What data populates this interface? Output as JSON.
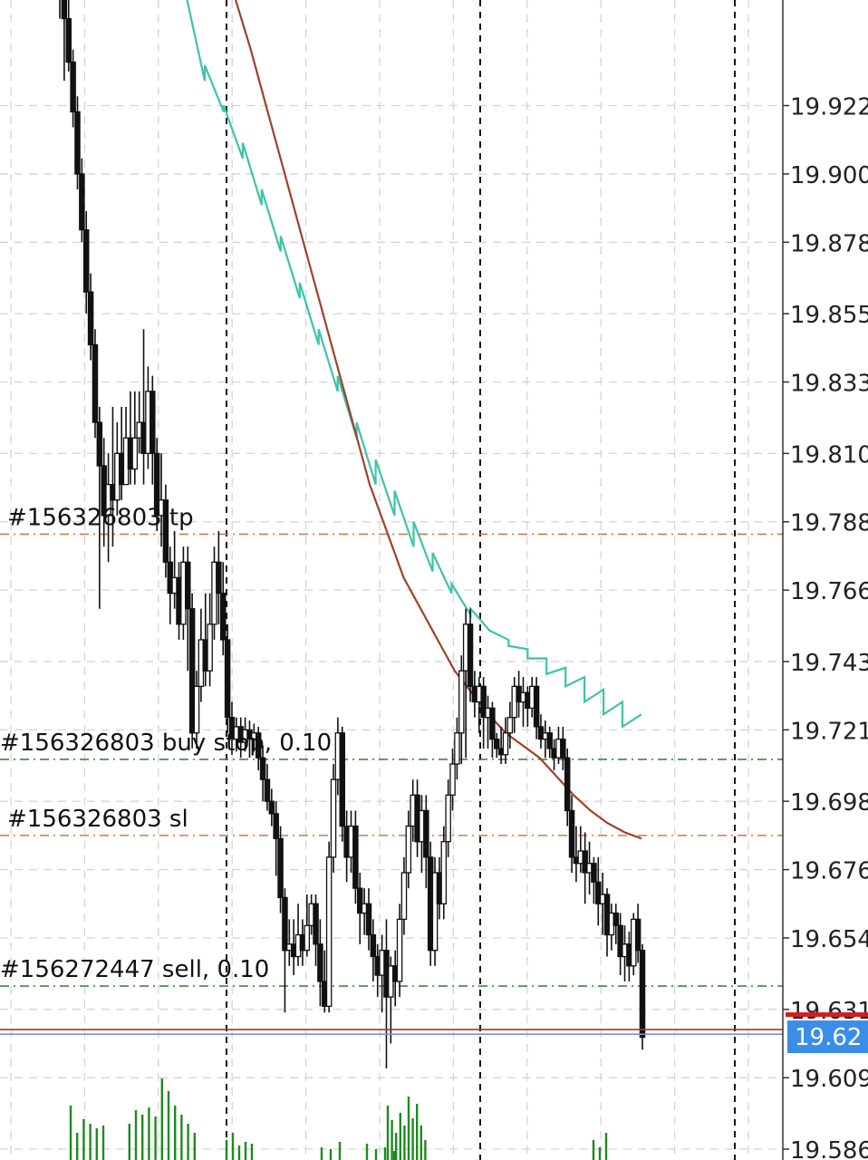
{
  "colors": {
    "background": "#ffffff",
    "grid": "#d4d4d4",
    "candle": "#111111",
    "volume": "#1f8a1f",
    "ma_fast": "#3cc4a8",
    "ma_slow": "#a0402a",
    "order_tp_sl": "#d07a40",
    "order_entry": "#3a8a3a",
    "bid_line": "#b03030",
    "ask_line": "#6f96c8",
    "price_tag": "#3b8ee8",
    "current_marker": "#d41c1c"
  },
  "chart_data": {
    "type": "candlestick",
    "y_axis": {
      "ticks": [
        "19.922",
        "19.900",
        "19.878",
        "19.855",
        "19.833",
        "19.810",
        "19.788",
        "19.766",
        "19.743",
        "19.721",
        "19.698",
        "19.676",
        "19.654",
        "19.631",
        "19.609",
        "19.586"
      ],
      "range": [
        19.5825,
        19.956
      ]
    },
    "order_lines": [
      {
        "label": "#156326803 tp",
        "price": 19.784,
        "kind": "tp"
      },
      {
        "label": "#156326803 buy stop, 0.10",
        "price": 19.7115,
        "kind": "entry"
      },
      {
        "label": "#156326803 sl",
        "price": 19.687,
        "kind": "sl"
      },
      {
        "label": "#156272447 sell, 0.10",
        "price": 19.6385,
        "kind": "entry"
      }
    ],
    "current_price": {
      "label": "19.62",
      "bid": 19.6245,
      "ask": 19.623
    },
    "period_separators": 4,
    "candles": [
      [
        19.99,
        19.97,
        19.98,
        19.95
      ],
      [
        19.97,
        19.95,
        19.97,
        19.93
      ],
      [
        19.95,
        19.936,
        19.957,
        19.933
      ],
      [
        19.936,
        19.92,
        19.94,
        19.915
      ],
      [
        19.92,
        19.9,
        19.925,
        19.895
      ],
      [
        19.9,
        19.882,
        19.905,
        19.878
      ],
      [
        19.882,
        19.862,
        19.888,
        19.855
      ],
      [
        19.862,
        19.845,
        19.868,
        19.84
      ],
      [
        19.845,
        19.82,
        19.85,
        19.815
      ],
      [
        19.82,
        19.806,
        19.825,
        19.76
      ],
      [
        19.806,
        19.79,
        19.815,
        19.78
      ],
      [
        19.79,
        19.8,
        19.81,
        19.775
      ],
      [
        19.8,
        19.795,
        19.825,
        19.78
      ],
      [
        19.795,
        19.81,
        19.82,
        19.79
      ],
      [
        19.81,
        19.8,
        19.825,
        19.795
      ],
      [
        19.8,
        19.815,
        19.825,
        19.8
      ],
      [
        19.815,
        19.805,
        19.83,
        19.8
      ],
      [
        19.805,
        19.815,
        19.83,
        19.8
      ],
      [
        19.815,
        19.82,
        19.83,
        19.81
      ],
      [
        19.82,
        19.81,
        19.85,
        19.8
      ],
      [
        19.81,
        19.83,
        19.838,
        19.805
      ],
      [
        19.83,
        19.81,
        19.835,
        19.8
      ],
      [
        19.81,
        19.79,
        19.815,
        19.785
      ],
      [
        19.79,
        19.795,
        19.81,
        19.78
      ],
      [
        19.795,
        19.775,
        19.8,
        19.77
      ],
      [
        19.775,
        19.765,
        19.78,
        19.755
      ],
      [
        19.765,
        19.77,
        19.785,
        19.76
      ],
      [
        19.77,
        19.755,
        19.775,
        19.75
      ],
      [
        19.755,
        19.775,
        19.78,
        19.75
      ],
      [
        19.775,
        19.76,
        19.78,
        19.74
      ],
      [
        19.76,
        19.72,
        19.765,
        19.715
      ],
      [
        19.72,
        19.735,
        19.74,
        19.715
      ],
      [
        19.735,
        19.75,
        19.76,
        19.73
      ],
      [
        19.75,
        19.74,
        19.765,
        19.735
      ],
      [
        19.74,
        19.755,
        19.765,
        19.735
      ],
      [
        19.755,
        19.775,
        19.78,
        19.75
      ],
      [
        19.775,
        19.765,
        19.785,
        19.755
      ],
      [
        19.765,
        19.75,
        19.775,
        19.745
      ],
      [
        19.75,
        19.725,
        19.755,
        19.72
      ],
      [
        19.725,
        19.718,
        19.73,
        19.713
      ],
      [
        19.718,
        19.722,
        19.725,
        19.714
      ],
      [
        19.722,
        19.717,
        19.725,
        19.712
      ],
      [
        19.717,
        19.721,
        19.725,
        19.714
      ],
      [
        19.721,
        19.718,
        19.724,
        19.712
      ],
      [
        19.718,
        19.72,
        19.723,
        19.714
      ],
      [
        19.72,
        19.712,
        19.722,
        19.708
      ],
      [
        19.712,
        19.705,
        19.716,
        19.698
      ],
      [
        19.705,
        19.698,
        19.71,
        19.695
      ],
      [
        19.698,
        19.694,
        19.702,
        19.69
      ],
      [
        19.694,
        19.686,
        19.698,
        19.674
      ],
      [
        19.686,
        19.667,
        19.69,
        19.662
      ],
      [
        19.667,
        19.65,
        19.67,
        19.63
      ],
      [
        19.65,
        19.652,
        19.66,
        19.645
      ],
      [
        19.652,
        19.648,
        19.66,
        19.642
      ],
      [
        19.648,
        19.655,
        19.665,
        19.645
      ],
      [
        19.655,
        19.65,
        19.66,
        19.645
      ],
      [
        19.65,
        19.658,
        19.668,
        19.648
      ],
      [
        19.658,
        19.665,
        19.668,
        19.655
      ],
      [
        19.665,
        19.652,
        19.668,
        19.645
      ],
      [
        19.652,
        19.64,
        19.66,
        19.632
      ],
      [
        19.64,
        19.632,
        19.65,
        19.63
      ],
      [
        19.632,
        19.68,
        19.685,
        19.63
      ],
      [
        19.68,
        19.705,
        19.71,
        19.675
      ],
      [
        19.705,
        19.72,
        19.725,
        19.7
      ],
      [
        19.72,
        19.69,
        19.722,
        19.685
      ],
      [
        19.69,
        19.68,
        19.695,
        19.672
      ],
      [
        19.68,
        19.69,
        19.695,
        19.675
      ],
      [
        19.69,
        19.67,
        19.695,
        19.665
      ],
      [
        19.67,
        19.662,
        19.675,
        19.652
      ],
      [
        19.662,
        19.665,
        19.67,
        19.655
      ],
      [
        19.665,
        19.655,
        19.67,
        19.65
      ],
      [
        19.655,
        19.648,
        19.66,
        19.64
      ],
      [
        19.648,
        19.642,
        19.652,
        19.635
      ],
      [
        19.642,
        19.65,
        19.655,
        19.63
      ],
      [
        19.65,
        19.635,
        19.66,
        19.612
      ],
      [
        19.635,
        19.645,
        19.648,
        19.62
      ],
      [
        19.645,
        19.64,
        19.65,
        19.632
      ],
      [
        19.64,
        19.66,
        19.665,
        19.635
      ],
      [
        19.66,
        19.675,
        19.68,
        19.655
      ],
      [
        19.675,
        19.69,
        19.695,
        19.67
      ],
      [
        19.69,
        19.7,
        19.705,
        19.685
      ],
      [
        19.7,
        19.685,
        19.705,
        19.68
      ],
      [
        19.685,
        19.695,
        19.7,
        19.675
      ],
      [
        19.695,
        19.68,
        19.7,
        19.67
      ],
      [
        19.68,
        19.65,
        19.685,
        19.645
      ],
      [
        19.65,
        19.675,
        19.68,
        19.645
      ],
      [
        19.675,
        19.665,
        19.68,
        19.66
      ],
      [
        19.665,
        19.685,
        19.69,
        19.66
      ],
      [
        19.685,
        19.7,
        19.705,
        19.68
      ],
      [
        19.7,
        19.71,
        19.715,
        19.695
      ],
      [
        19.71,
        19.72,
        19.725,
        19.705
      ],
      [
        19.72,
        19.74,
        19.745,
        19.71
      ],
      [
        19.74,
        19.755,
        19.76,
        19.712
      ],
      [
        19.755,
        19.735,
        19.76,
        19.73
      ],
      [
        19.735,
        19.73,
        19.74,
        19.725
      ],
      [
        19.73,
        19.735,
        19.738,
        19.72
      ],
      [
        19.735,
        19.725,
        19.738,
        19.715
      ],
      [
        19.725,
        19.728,
        19.732,
        19.715
      ],
      [
        19.728,
        19.718,
        19.73,
        19.712
      ],
      [
        19.718,
        19.715,
        19.72,
        19.712
      ],
      [
        19.715,
        19.713,
        19.722,
        19.71
      ],
      [
        19.713,
        19.72,
        19.725,
        19.71
      ],
      [
        19.72,
        19.725,
        19.73,
        19.715
      ],
      [
        19.725,
        19.735,
        19.738,
        19.72
      ],
      [
        19.735,
        19.73,
        19.74,
        19.725
      ],
      [
        19.73,
        19.733,
        19.738,
        19.722
      ],
      [
        19.733,
        19.728,
        19.735,
        19.722
      ],
      [
        19.728,
        19.735,
        19.738,
        19.725
      ],
      [
        19.735,
        19.722,
        19.738,
        19.718
      ],
      [
        19.722,
        19.718,
        19.726,
        19.715
      ],
      [
        19.718,
        19.72,
        19.724,
        19.712
      ],
      [
        19.72,
        19.715,
        19.722,
        19.712
      ],
      [
        19.715,
        19.712,
        19.718,
        19.708
      ],
      [
        19.712,
        19.718,
        19.722,
        19.71
      ],
      [
        19.718,
        19.712,
        19.722,
        19.708
      ],
      [
        19.712,
        19.695,
        19.715,
        19.69
      ],
      [
        19.695,
        19.68,
        19.7,
        19.675
      ],
      [
        19.68,
        19.678,
        19.69,
        19.672
      ],
      [
        19.678,
        19.682,
        19.69,
        19.675
      ],
      [
        19.682,
        19.675,
        19.688,
        19.665
      ],
      [
        19.675,
        19.678,
        19.685,
        19.668
      ],
      [
        19.678,
        19.672,
        19.68,
        19.665
      ],
      [
        19.672,
        19.665,
        19.68,
        19.658
      ],
      [
        19.665,
        19.668,
        19.675,
        19.655
      ],
      [
        19.668,
        19.655,
        19.67,
        19.648
      ],
      [
        19.655,
        19.662,
        19.665,
        19.65
      ],
      [
        19.662,
        19.658,
        19.665,
        19.652
      ],
      [
        19.658,
        19.648,
        19.662,
        19.642
      ],
      [
        19.648,
        19.652,
        19.658,
        19.64
      ],
      [
        19.652,
        19.645,
        19.656,
        19.64
      ],
      [
        19.645,
        19.66,
        19.662,
        19.642
      ],
      [
        19.66,
        19.65,
        19.665,
        19.646
      ],
      [
        19.65,
        19.622,
        19.652,
        19.618
      ]
    ],
    "volumes": [
      0,
      0,
      0,
      0,
      0,
      0,
      0,
      0,
      0,
      0,
      0,
      0,
      0,
      0,
      0,
      0,
      0,
      0,
      0,
      0,
      0,
      0,
      0,
      0,
      0,
      0,
      0,
      0,
      0,
      0,
      0,
      0,
      0,
      0,
      0,
      0,
      0,
      0,
      0,
      0,
      0,
      0,
      0,
      0,
      0,
      0,
      0,
      0,
      0,
      0,
      0,
      0,
      0,
      0,
      0,
      0,
      0,
      0,
      0,
      0,
      0,
      0,
      0,
      0,
      0,
      0,
      0,
      0,
      0,
      0,
      0,
      0,
      0,
      0,
      0,
      0,
      0,
      0,
      0,
      0,
      0,
      0,
      0,
      0,
      0,
      0,
      0,
      0,
      0,
      0,
      0,
      0,
      0,
      0,
      0,
      0,
      0,
      0,
      0,
      0,
      0,
      0,
      0,
      0,
      0,
      0,
      0,
      0,
      0,
      0,
      0,
      0,
      0,
      0,
      0,
      0,
      0,
      0,
      0,
      0,
      0,
      0,
      0,
      0,
      0,
      0,
      0,
      0,
      0,
      0,
      0,
      0,
      0
    ],
    "ma_fast": [
      [
        19.958,
        19.93
      ],
      [
        19.935,
        19.92
      ],
      [
        19.922,
        19.905
      ],
      [
        19.91,
        19.89
      ],
      [
        19.895,
        19.875
      ],
      [
        19.88,
        19.86
      ],
      [
        19.865,
        19.845
      ],
      [
        19.85,
        19.83
      ],
      [
        19.835,
        19.815
      ],
      [
        19.82,
        19.8
      ],
      [
        19.808,
        19.79
      ],
      [
        19.798,
        19.78
      ],
      [
        19.788,
        19.772
      ],
      [
        19.778,
        19.765
      ],
      [
        19.768,
        19.758
      ],
      [
        19.76,
        19.753
      ],
      [
        19.753,
        19.75
      ],
      [
        19.748,
        19.747
      ],
      [
        19.744,
        19.744
      ],
      [
        19.739,
        19.741
      ],
      [
        19.735,
        19.738
      ],
      [
        19.73,
        19.734
      ],
      [
        19.726,
        19.73
      ],
      [
        19.722,
        19.726
      ]
    ],
    "ma_slow": [
      [
        19.958,
        19.94
      ],
      [
        19.94,
        19.92
      ],
      [
        19.92,
        19.9
      ],
      [
        19.9,
        19.88
      ],
      [
        19.88,
        19.86
      ],
      [
        19.86,
        19.84
      ],
      [
        19.84,
        19.82
      ],
      [
        19.82,
        19.8
      ],
      [
        19.8,
        19.785
      ],
      [
        19.785,
        19.77
      ],
      [
        19.77,
        19.76
      ],
      [
        19.76,
        19.75
      ],
      [
        19.75,
        19.74
      ],
      [
        19.74,
        19.733
      ],
      [
        19.733,
        19.726
      ],
      [
        19.726,
        19.72
      ],
      [
        19.72,
        19.716
      ],
      [
        19.716,
        19.712
      ],
      [
        19.712,
        19.706
      ],
      [
        19.706,
        19.7
      ],
      [
        19.7,
        19.695
      ],
      [
        19.695,
        19.691
      ],
      [
        19.691,
        19.688
      ],
      [
        19.688,
        19.686
      ]
    ]
  }
}
